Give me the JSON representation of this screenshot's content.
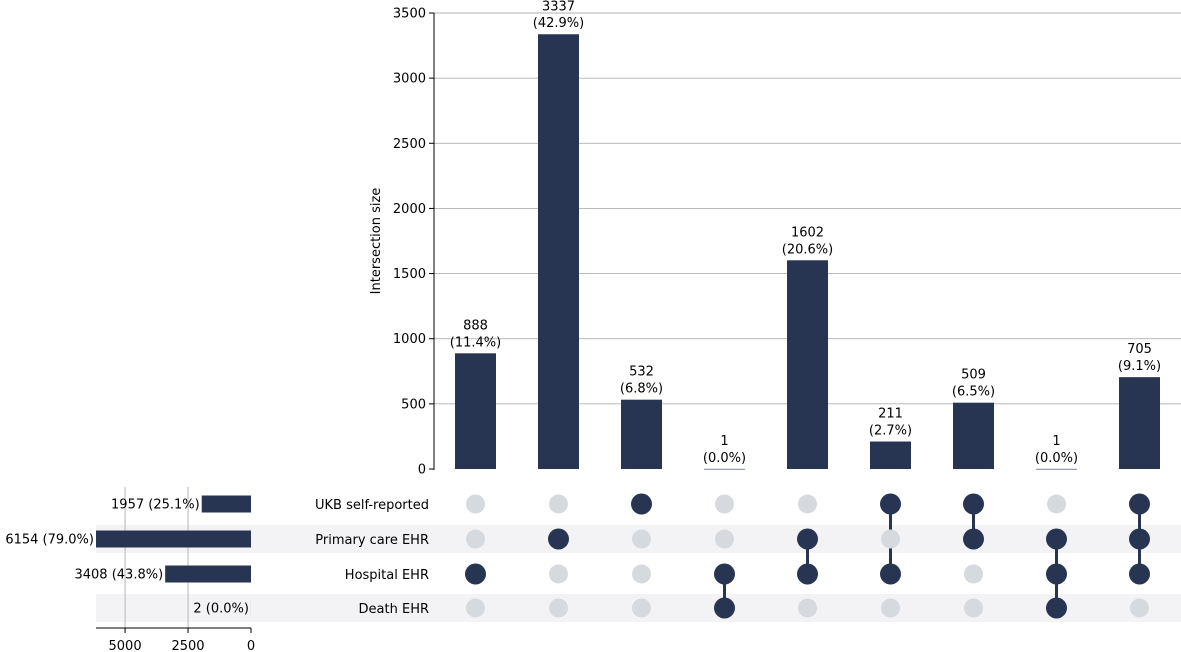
{
  "chart_data": {
    "type": "upset",
    "ylabel": "Intersection size",
    "ylim": [
      0,
      3500
    ],
    "yticks": [
      0,
      500,
      1000,
      1500,
      2000,
      2500,
      3000,
      3500
    ],
    "sets": [
      {
        "name": "UKB self-reported",
        "size": 1957,
        "size_label": "1957 (25.1%)"
      },
      {
        "name": "Primary care EHR",
        "size": 6154,
        "size_label": "6154 (79.0%)"
      },
      {
        "name": "Hospital EHR",
        "size": 3408,
        "size_label": "3408 (43.8%)"
      },
      {
        "name": "Death EHR",
        "size": 2,
        "size_label": "2 (0.0%)"
      }
    ],
    "set_size_ticks": [
      5000,
      2500,
      0
    ],
    "set_size_max": 6154,
    "intersections": [
      {
        "value": 888,
        "label": "888",
        "pct": "(11.4%)",
        "members": [
          2
        ]
      },
      {
        "value": 3337,
        "label": "3337",
        "pct": "(42.9%)",
        "members": [
          1
        ]
      },
      {
        "value": 532,
        "label": "532",
        "pct": "(6.8%)",
        "members": [
          0
        ]
      },
      {
        "value": 1,
        "label": "1",
        "pct": "(0.0%)",
        "members": [
          2,
          3
        ]
      },
      {
        "value": 1602,
        "label": "1602",
        "pct": "(20.6%)",
        "members": [
          1,
          2
        ]
      },
      {
        "value": 211,
        "label": "211",
        "pct": "(2.7%)",
        "members": [
          0,
          2
        ]
      },
      {
        "value": 509,
        "label": "509",
        "pct": "(6.5%)",
        "members": [
          0,
          1
        ]
      },
      {
        "value": 1,
        "label": "1",
        "pct": "(0.0%)",
        "members": [
          1,
          2,
          3
        ]
      },
      {
        "value": 705,
        "label": "705",
        "pct": "(9.1%)",
        "members": [
          0,
          1,
          2
        ]
      }
    ],
    "colors": {
      "bar": "#273552",
      "dot_inactive": "#d6d9de",
      "grid": "#b0b0b0",
      "stripe": "#f3f3f5"
    }
  }
}
